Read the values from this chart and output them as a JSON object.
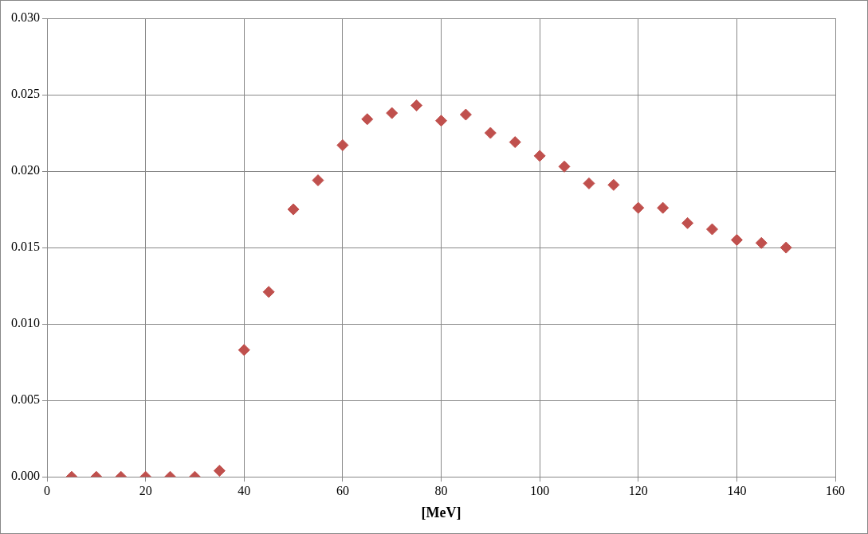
{
  "chart_data": {
    "type": "scatter",
    "xlabel": "[MeV]",
    "x": [
      5,
      10,
      15,
      20,
      25,
      30,
      35,
      40,
      45,
      50,
      55,
      60,
      65,
      70,
      75,
      80,
      85,
      90,
      95,
      100,
      105,
      110,
      115,
      120,
      125,
      130,
      135,
      140,
      145,
      150
    ],
    "series": [
      {
        "color": "#c0504d",
        "values": [
          0,
          0,
          0,
          0,
          0,
          0,
          0.0004,
          0.0083,
          0.0121,
          0.0175,
          0.0194,
          0.0217,
          0.0234,
          0.0238,
          0.0243,
          0.0233,
          0.0237,
          0.0225,
          0.0219,
          0.021,
          0.0203,
          0.0192,
          0.0191,
          0.0176,
          0.0176,
          0.0166,
          0.0162,
          0.0155,
          0.0153,
          0.015
        ]
      }
    ],
    "xlim": [
      0,
      160
    ],
    "xticks": [
      0,
      20,
      40,
      60,
      80,
      100,
      120,
      140,
      160
    ],
    "ylim": [
      0,
      0.03
    ],
    "yticks": [
      {
        "value": 0,
        "label": "0.000"
      },
      {
        "value": 0.005,
        "label": "0.005"
      },
      {
        "value": 0.01,
        "label": "0.010"
      },
      {
        "value": 0.015,
        "label": "0.015"
      },
      {
        "value": 0.02,
        "label": "0.020"
      },
      {
        "value": 0.025,
        "label": "0.025"
      },
      {
        "value": 0.03,
        "label": "0.030"
      }
    ],
    "grid": true,
    "marker": "diamond",
    "legend": false
  }
}
